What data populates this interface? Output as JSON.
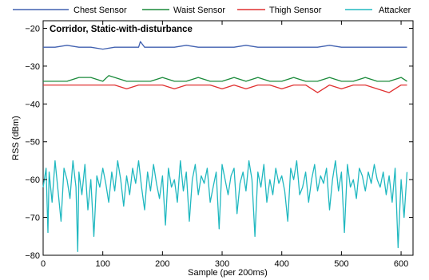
{
  "chart_data": {
    "type": "line",
    "title": "Corridor, Static-with-disturbance",
    "xlabel": "Sample (per 200ms)",
    "ylabel": "RSS (dBm)",
    "xlim": [
      0,
      620
    ],
    "ylim": [
      -80,
      -18
    ],
    "xticks": [
      0,
      100,
      200,
      300,
      400,
      500,
      600
    ],
    "yticks": [
      -20,
      -30,
      -40,
      -50,
      -60,
      -70,
      -80
    ],
    "legend_position": "top, above plot",
    "grid": false,
    "series": [
      {
        "name": "Chest Sensor",
        "color": "#4060b0",
        "x": [
          0,
          20,
          40,
          60,
          80,
          100,
          120,
          140,
          160,
          163,
          170,
          180,
          200,
          220,
          240,
          260,
          280,
          300,
          320,
          340,
          360,
          380,
          400,
          420,
          440,
          460,
          480,
          500,
          520,
          540,
          560,
          580,
          600,
          610
        ],
        "values": [
          -25,
          -25,
          -24.5,
          -25,
          -25,
          -25.5,
          -25,
          -25,
          -25,
          -23.5,
          -25,
          -25,
          -25,
          -25,
          -24.5,
          -25,
          -25,
          -25,
          -25,
          -24.5,
          -25,
          -25,
          -25,
          -25,
          -25,
          -25,
          -24.5,
          -25,
          -25,
          -25,
          -25,
          -25,
          -25,
          -25
        ]
      },
      {
        "name": "Waist Sensor",
        "color": "#1a8a3a",
        "x": [
          0,
          20,
          40,
          60,
          80,
          100,
          110,
          120,
          140,
          160,
          180,
          200,
          220,
          240,
          260,
          280,
          300,
          320,
          340,
          360,
          380,
          400,
          420,
          440,
          460,
          480,
          500,
          520,
          540,
          560,
          580,
          600,
          610
        ],
        "values": [
          -34,
          -34,
          -34,
          -33,
          -33,
          -34,
          -32.5,
          -33,
          -34,
          -34,
          -34,
          -33,
          -34,
          -34,
          -33,
          -34,
          -34,
          -33,
          -34,
          -33,
          -34,
          -34,
          -33,
          -34,
          -34,
          -33,
          -34,
          -34,
          -33,
          -34,
          -34,
          -33,
          -34
        ]
      },
      {
        "name": "Thigh Sensor",
        "color": "#e03030",
        "x": [
          0,
          20,
          40,
          60,
          80,
          100,
          120,
          140,
          160,
          180,
          200,
          220,
          240,
          260,
          280,
          300,
          320,
          340,
          360,
          380,
          400,
          420,
          440,
          460,
          480,
          500,
          520,
          540,
          560,
          580,
          600,
          610
        ],
        "values": [
          -35,
          -35,
          -35,
          -35,
          -35,
          -35,
          -35,
          -36,
          -35,
          -35,
          -35,
          -36,
          -35,
          -35,
          -35,
          -36,
          -35,
          -36,
          -35,
          -35,
          -36,
          -35,
          -35,
          -37,
          -35,
          -36,
          -35,
          -35,
          -36,
          -37,
          -35,
          -35
        ]
      },
      {
        "name": "Attacker",
        "color": "#20b8c0",
        "x": [
          0,
          5,
          8,
          10,
          15,
          20,
          25,
          30,
          35,
          40,
          45,
          50,
          55,
          58,
          60,
          65,
          70,
          75,
          80,
          85,
          90,
          95,
          100,
          105,
          110,
          115,
          120,
          125,
          130,
          135,
          140,
          145,
          150,
          155,
          160,
          165,
          170,
          175,
          180,
          185,
          190,
          195,
          200,
          205,
          210,
          215,
          220,
          225,
          230,
          235,
          240,
          245,
          250,
          255,
          260,
          265,
          270,
          275,
          280,
          285,
          290,
          295,
          300,
          305,
          310,
          315,
          320,
          325,
          330,
          335,
          340,
          345,
          350,
          355,
          360,
          365,
          370,
          375,
          380,
          385,
          390,
          395,
          400,
          405,
          410,
          415,
          420,
          425,
          430,
          435,
          440,
          445,
          450,
          455,
          460,
          465,
          470,
          475,
          480,
          485,
          490,
          495,
          500,
          505,
          510,
          515,
          520,
          525,
          530,
          535,
          540,
          545,
          550,
          555,
          560,
          565,
          570,
          575,
          580,
          585,
          590,
          595,
          600,
          605,
          610
        ],
        "values": [
          -62,
          -57,
          -74,
          -58,
          -66,
          -55,
          -63,
          -71,
          -57,
          -60,
          -65,
          -55,
          -62,
          -79,
          -58,
          -64,
          -56,
          -68,
          -60,
          -75,
          -59,
          -62,
          -57,
          -61,
          -66,
          -58,
          -63,
          -55,
          -60,
          -67,
          -59,
          -64,
          -57,
          -61,
          -55,
          -62,
          -68,
          -58,
          -63,
          -56,
          -61,
          -65,
          -59,
          -72,
          -57,
          -62,
          -60,
          -66,
          -55,
          -63,
          -58,
          -71,
          -60,
          -56,
          -64,
          -59,
          -61,
          -57,
          -66,
          -62,
          -58,
          -73,
          -56,
          -60,
          -64,
          -59,
          -57,
          -69,
          -61,
          -58,
          -63,
          -55,
          -60,
          -75,
          -58,
          -62,
          -56,
          -66,
          -60,
          -64,
          -57,
          -61,
          -59,
          -63,
          -71,
          -57,
          -60,
          -55,
          -64,
          -62,
          -58,
          -66,
          -60,
          -56,
          -63,
          -59,
          -61,
          -57,
          -68,
          -60,
          -55,
          -63,
          -58,
          -74,
          -56,
          -62,
          -60,
          -65,
          -57,
          -59,
          -63,
          -58,
          -61,
          -56,
          -60,
          -62,
          -58,
          -64,
          -59,
          -66,
          -57,
          -78,
          -60,
          -70,
          -58
        ]
      }
    ]
  }
}
